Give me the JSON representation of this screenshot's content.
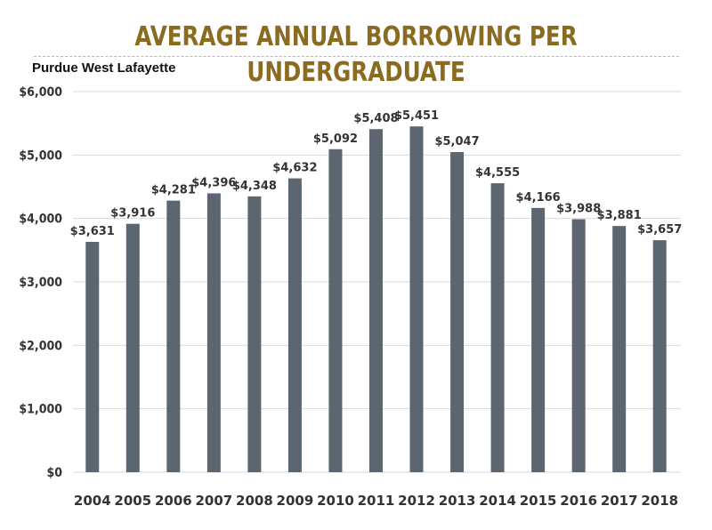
{
  "chart_data": {
    "type": "bar",
    "title": "AVERAGE ANNUAL BORROWING PER UNDERGRADUATE",
    "subtitle": "Purdue West Lafayette",
    "xlabel": "",
    "ylabel": "",
    "categories": [
      "2004",
      "2005",
      "2006",
      "2007",
      "2008",
      "2009",
      "2010",
      "2011",
      "2012",
      "2013",
      "2014",
      "2015",
      "2016",
      "2017",
      "2018"
    ],
    "values": [
      3631,
      3916,
      4281,
      4396,
      4348,
      4632,
      5092,
      5408,
      5451,
      5047,
      4555,
      4166,
      3988,
      3881,
      3657
    ],
    "data_labels": [
      "$3,631",
      "$3,916",
      "$4,281",
      "$4,396",
      "$4,348",
      "$4,632",
      "$5,092",
      "$5,408",
      "$5,451",
      "$5,047",
      "$4,555",
      "$4,166",
      "$3,988",
      "$3,881",
      "$3,657"
    ],
    "ylim": [
      0,
      6000
    ],
    "yticks": [
      0,
      1000,
      2000,
      3000,
      4000,
      5000,
      6000
    ],
    "ytick_labels": [
      "$0",
      "$1,000",
      "$2,000",
      "$3,000",
      "$4,000",
      "$5,000",
      "$6,000"
    ],
    "grid": true,
    "colors": {
      "bar": "#5c6670",
      "grid": "#d9d9d9",
      "title": "#8b6b1f"
    }
  }
}
